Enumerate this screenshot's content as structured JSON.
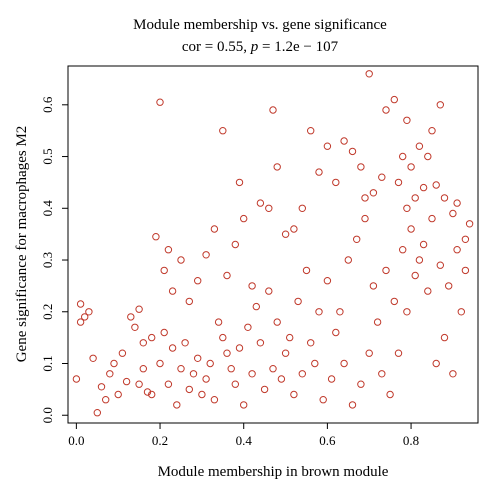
{
  "chart_data": {
    "type": "scatter",
    "title": "Module membership vs. gene significance",
    "subtitle_prefix": "cor = 0.55, ",
    "subtitle_p": "p",
    "subtitle_suffix": " = 1.2e − 107",
    "xlabel": "Module membership in brown module",
    "ylabel": "Gene significance for macrophages M2",
    "xlim": [
      -0.02,
      0.96
    ],
    "ylim": [
      -0.015,
      0.675
    ],
    "xticks": [
      0.0,
      0.2,
      0.4,
      0.6,
      0.8
    ],
    "xtick_labels": [
      "0.0",
      "0.2",
      "0.4",
      "0.6",
      "0.8"
    ],
    "yticks": [
      0.0,
      0.1,
      0.2,
      0.3,
      0.4,
      0.5,
      0.6
    ],
    "ytick_labels": [
      "0.0",
      "0.1",
      "0.2",
      "0.3",
      "0.4",
      "0.5",
      "0.6"
    ],
    "grid": false,
    "marker_color": "#c0392b",
    "series": [
      {
        "points": [
          [
            0.01,
            0.215
          ],
          [
            0.02,
            0.19
          ],
          [
            0.01,
            0.18
          ],
          [
            0.03,
            0.2
          ],
          [
            0.0,
            0.07
          ],
          [
            0.04,
            0.11
          ],
          [
            0.05,
            0.005
          ],
          [
            0.06,
            0.055
          ],
          [
            0.07,
            0.03
          ],
          [
            0.08,
            0.08
          ],
          [
            0.09,
            0.1
          ],
          [
            0.1,
            0.04
          ],
          [
            0.11,
            0.12
          ],
          [
            0.12,
            0.065
          ],
          [
            0.13,
            0.19
          ],
          [
            0.14,
            0.17
          ],
          [
            0.15,
            0.205
          ],
          [
            0.16,
            0.09
          ],
          [
            0.17,
            0.045
          ],
          [
            0.18,
            0.15
          ],
          [
            0.19,
            0.345
          ],
          [
            0.2,
            0.605
          ],
          [
            0.21,
            0.28
          ],
          [
            0.22,
            0.32
          ],
          [
            0.23,
            0.24
          ],
          [
            0.25,
            0.3
          ],
          [
            0.27,
            0.22
          ],
          [
            0.29,
            0.26
          ],
          [
            0.31,
            0.31
          ],
          [
            0.33,
            0.36
          ],
          [
            0.35,
            0.55
          ],
          [
            0.36,
            0.27
          ],
          [
            0.38,
            0.33
          ],
          [
            0.39,
            0.45
          ],
          [
            0.4,
            0.38
          ],
          [
            0.42,
            0.25
          ],
          [
            0.44,
            0.41
          ],
          [
            0.46,
            0.4
          ],
          [
            0.47,
            0.59
          ],
          [
            0.48,
            0.48
          ],
          [
            0.5,
            0.35
          ],
          [
            0.52,
            0.36
          ],
          [
            0.54,
            0.4
          ],
          [
            0.56,
            0.55
          ],
          [
            0.58,
            0.47
          ],
          [
            0.6,
            0.52
          ],
          [
            0.62,
            0.45
          ],
          [
            0.64,
            0.53
          ],
          [
            0.66,
            0.51
          ],
          [
            0.68,
            0.48
          ],
          [
            0.7,
            0.66
          ],
          [
            0.71,
            0.43
          ],
          [
            0.73,
            0.46
          ],
          [
            0.74,
            0.59
          ],
          [
            0.76,
            0.61
          ],
          [
            0.78,
            0.5
          ],
          [
            0.79,
            0.57
          ],
          [
            0.8,
            0.48
          ],
          [
            0.82,
            0.52
          ],
          [
            0.84,
            0.5
          ],
          [
            0.85,
            0.55
          ],
          [
            0.86,
            0.445
          ],
          [
            0.87,
            0.6
          ],
          [
            0.88,
            0.42
          ],
          [
            0.9,
            0.39
          ],
          [
            0.91,
            0.41
          ],
          [
            0.93,
            0.34
          ],
          [
            0.94,
            0.37
          ],
          [
            0.92,
            0.2
          ],
          [
            0.9,
            0.08
          ],
          [
            0.88,
            0.15
          ],
          [
            0.86,
            0.1
          ],
          [
            0.84,
            0.24
          ],
          [
            0.82,
            0.3
          ],
          [
            0.8,
            0.36
          ],
          [
            0.78,
            0.32
          ],
          [
            0.76,
            0.22
          ],
          [
            0.74,
            0.28
          ],
          [
            0.72,
            0.18
          ],
          [
            0.7,
            0.12
          ],
          [
            0.68,
            0.06
          ],
          [
            0.66,
            0.02
          ],
          [
            0.64,
            0.1
          ],
          [
            0.62,
            0.16
          ],
          [
            0.6,
            0.26
          ],
          [
            0.58,
            0.2
          ],
          [
            0.56,
            0.14
          ],
          [
            0.54,
            0.08
          ],
          [
            0.52,
            0.04
          ],
          [
            0.5,
            0.12
          ],
          [
            0.48,
            0.18
          ],
          [
            0.46,
            0.24
          ],
          [
            0.44,
            0.14
          ],
          [
            0.42,
            0.08
          ],
          [
            0.4,
            0.02
          ],
          [
            0.38,
            0.06
          ],
          [
            0.36,
            0.12
          ],
          [
            0.34,
            0.18
          ],
          [
            0.32,
            0.1
          ],
          [
            0.3,
            0.04
          ],
          [
            0.28,
            0.08
          ],
          [
            0.26,
            0.14
          ],
          [
            0.24,
            0.02
          ],
          [
            0.22,
            0.06
          ],
          [
            0.2,
            0.1
          ],
          [
            0.18,
            0.04
          ],
          [
            0.16,
            0.14
          ],
          [
            0.15,
            0.06
          ],
          [
            0.21,
            0.16
          ],
          [
            0.23,
            0.13
          ],
          [
            0.25,
            0.09
          ],
          [
            0.27,
            0.05
          ],
          [
            0.29,
            0.11
          ],
          [
            0.31,
            0.07
          ],
          [
            0.33,
            0.03
          ],
          [
            0.35,
            0.15
          ],
          [
            0.37,
            0.09
          ],
          [
            0.39,
            0.13
          ],
          [
            0.41,
            0.17
          ],
          [
            0.43,
            0.21
          ],
          [
            0.45,
            0.05
          ],
          [
            0.47,
            0.09
          ],
          [
            0.49,
            0.07
          ],
          [
            0.51,
            0.15
          ],
          [
            0.53,
            0.22
          ],
          [
            0.55,
            0.28
          ],
          [
            0.57,
            0.1
          ],
          [
            0.59,
            0.03
          ],
          [
            0.61,
            0.07
          ],
          [
            0.63,
            0.2
          ],
          [
            0.65,
            0.3
          ],
          [
            0.67,
            0.34
          ],
          [
            0.69,
            0.38
          ],
          [
            0.71,
            0.25
          ],
          [
            0.73,
            0.08
          ],
          [
            0.75,
            0.04
          ],
          [
            0.77,
            0.12
          ],
          [
            0.79,
            0.2
          ],
          [
            0.81,
            0.27
          ],
          [
            0.83,
            0.33
          ],
          [
            0.85,
            0.38
          ],
          [
            0.87,
            0.29
          ],
          [
            0.89,
            0.25
          ],
          [
            0.91,
            0.32
          ],
          [
            0.93,
            0.28
          ],
          [
            0.81,
            0.42
          ],
          [
            0.79,
            0.4
          ],
          [
            0.77,
            0.45
          ],
          [
            0.83,
            0.44
          ],
          [
            0.69,
            0.42
          ]
        ]
      }
    ]
  }
}
